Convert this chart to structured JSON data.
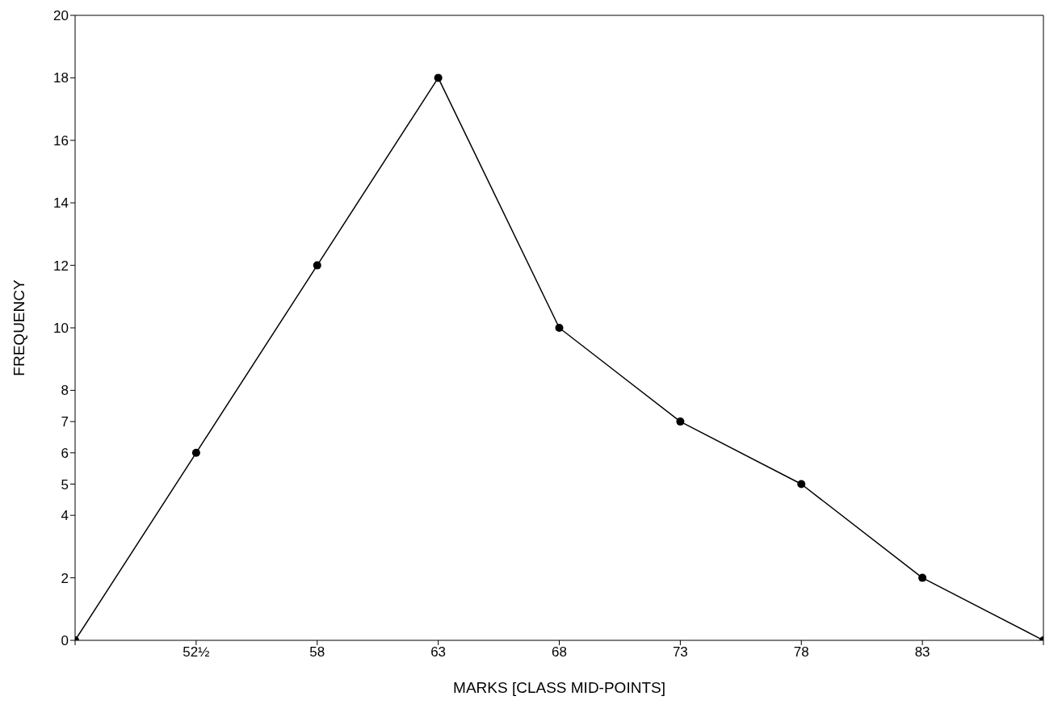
{
  "chart_data": {
    "type": "line",
    "xlabel": "MARKS  [CLASS MID-POINTS]",
    "ylabel": "FREQUENCY",
    "categories": [
      null,
      "52½",
      "58",
      "63",
      "68",
      "73",
      "78",
      "83",
      null
    ],
    "series": [
      {
        "color": "#000000",
        "values": [
          0,
          6,
          12,
          18,
          10,
          7,
          5,
          2,
          0
        ]
      }
    ],
    "ylim": [
      0,
      20
    ],
    "yticks": [
      0,
      2,
      4,
      5,
      6,
      7,
      8,
      10,
      12,
      14,
      16,
      18,
      20
    ],
    "grid": false,
    "legend": false,
    "marker": "circle",
    "line_style": "solid"
  }
}
